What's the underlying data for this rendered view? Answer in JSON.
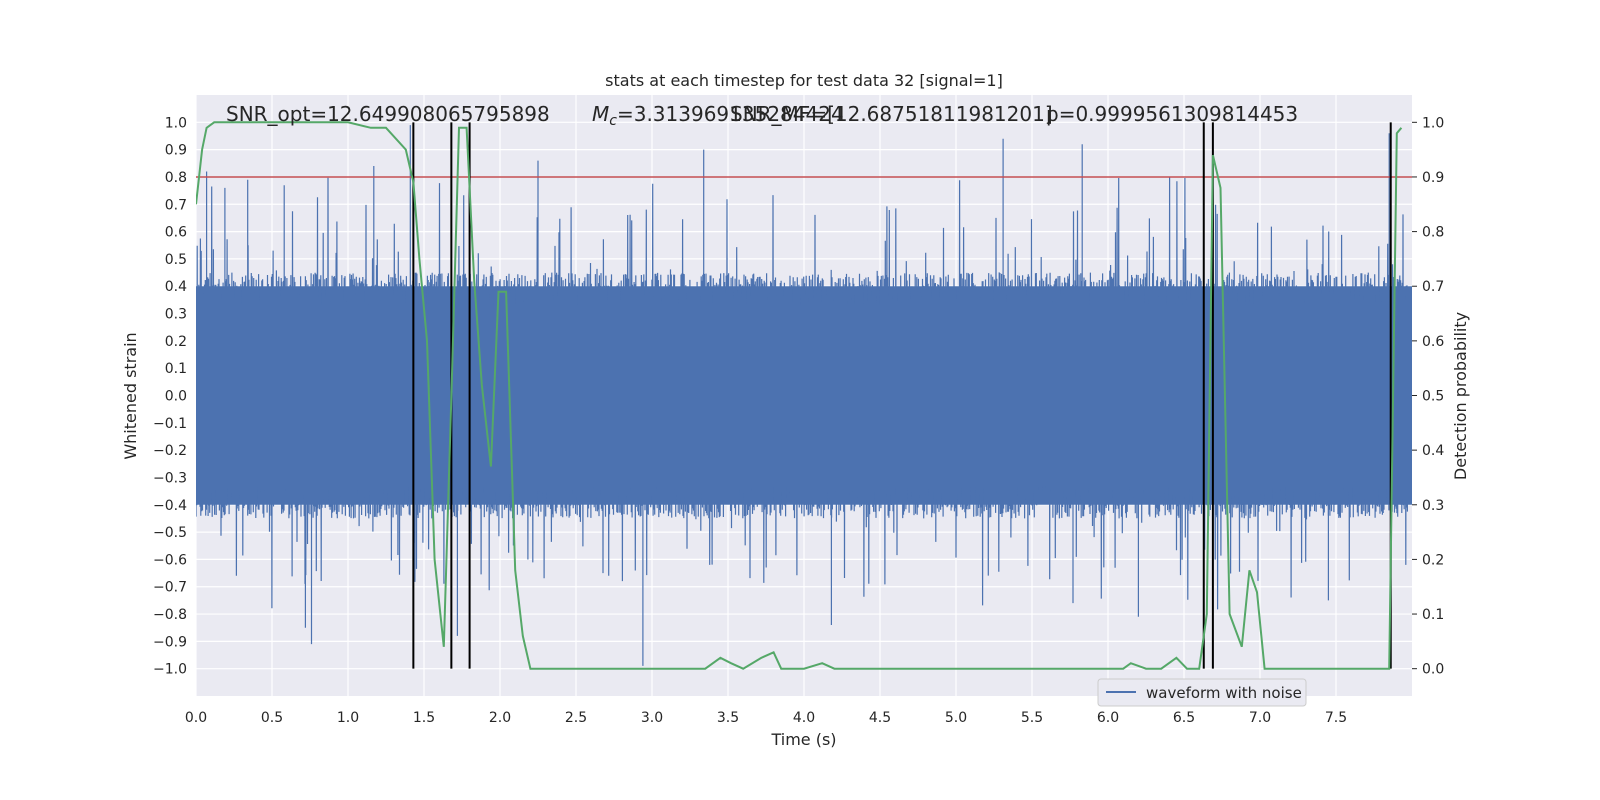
{
  "chart_data": {
    "type": "line",
    "title": "stats at each timestep for test data 32 [signal=1]",
    "xlabel": "Time (s)",
    "ylabel": "Whitened strain",
    "ylabel_right": "Detection probability",
    "xlim": [
      0.0,
      8.0
    ],
    "ylim": [
      -1.1,
      1.1
    ],
    "ylim_right": [
      -0.05,
      1.05
    ],
    "x_ticks": [
      "0.0",
      "0.5",
      "1.0",
      "1.5",
      "2.0",
      "2.5",
      "3.0",
      "3.5",
      "4.0",
      "4.5",
      "5.0",
      "5.5",
      "6.0",
      "6.5",
      "7.0",
      "7.5"
    ],
    "y_ticks": [
      "1.0",
      "0.9",
      "0.8",
      "0.7",
      "0.6",
      "0.5",
      "0.4",
      "0.3",
      "0.2",
      "0.1",
      "0.0",
      "−0.1",
      "−0.2",
      "−0.3",
      "−0.4",
      "−0.5",
      "−0.6",
      "−0.7",
      "−0.8",
      "−0.9",
      "−1.0"
    ],
    "y_right_ticks": [
      "1.0",
      "0.9",
      "0.8",
      "0.7",
      "0.6",
      "0.5",
      "0.4",
      "0.3",
      "0.2",
      "0.1",
      "0.0"
    ],
    "annotations": {
      "snr_opt": "SNR_opt=12.649908065795898",
      "mc": "=3.313969135284424",
      "mc_symbol": "M",
      "mc_sub": "c",
      "snr_mf": "SNR_MF=[12.68751811981201]",
      "p": "p=0.9999561309814453"
    },
    "threshold": 0.9,
    "threshold_color": "#c44e52",
    "grid": true,
    "legend": {
      "position": "bottom-right",
      "entries": [
        "waveform with noise"
      ]
    },
    "colors": {
      "waveform": "#4c72b0",
      "probability": "#55a868",
      "markers": "#000000",
      "background": "#eaeaf2"
    },
    "vertical_markers_x": [
      1.43,
      1.68,
      1.8,
      6.63,
      6.69,
      7.86
    ],
    "waveform_envelope": {
      "core_amplitude": 0.4,
      "spike_max": 0.99,
      "spike_min": -0.99
    },
    "series": [
      {
        "name": "waveform with noise",
        "axis": "left",
        "style": "dense oscillation",
        "peaks_upper": [
          [
            0.07,
            0.82
          ],
          [
            0.19,
            0.76
          ],
          [
            0.34,
            0.79
          ],
          [
            0.58,
            0.77
          ],
          [
            1.17,
            0.84
          ],
          [
            1.41,
            0.99
          ],
          [
            2.25,
            0.86
          ],
          [
            3.34,
            0.9
          ],
          [
            5.31,
            0.94
          ],
          [
            5.83,
            0.92
          ],
          [
            7.85,
            0.96
          ]
        ],
        "peaks_lower": [
          [
            0.76,
            -0.91
          ],
          [
            0.72,
            -0.85
          ],
          [
            1.72,
            -0.88
          ],
          [
            2.94,
            -0.99
          ],
          [
            4.18,
            -0.84
          ],
          [
            5.77,
            -0.76
          ],
          [
            6.2,
            -0.81
          ],
          [
            7.45,
            -0.75
          ],
          [
            7.86,
            -0.86
          ]
        ]
      },
      {
        "name": "detection probability",
        "axis": "right",
        "x": [
          0.0,
          0.04,
          0.07,
          0.12,
          0.5,
          1.0,
          1.15,
          1.25,
          1.38,
          1.43,
          1.47,
          1.52,
          1.57,
          1.63,
          1.68,
          1.73,
          1.78,
          1.83,
          1.88,
          1.94,
          1.99,
          2.04,
          2.1,
          2.15,
          2.2,
          2.3,
          2.5,
          2.94,
          3.2,
          3.35,
          3.45,
          3.52,
          3.6,
          3.72,
          3.8,
          3.85,
          3.92,
          4.0,
          4.12,
          4.2,
          4.5,
          5.0,
          5.5,
          5.9,
          6.1,
          6.15,
          6.25,
          6.35,
          6.45,
          6.52,
          6.6,
          6.65,
          6.69,
          6.74,
          6.8,
          6.88,
          6.93,
          6.98,
          7.03,
          7.08,
          7.2,
          7.5,
          7.7,
          7.8,
          7.85,
          7.9,
          7.93
        ],
        "y": [
          0.85,
          0.95,
          0.99,
          1.0,
          1.0,
          1.0,
          0.99,
          0.99,
          0.95,
          0.89,
          0.75,
          0.6,
          0.2,
          0.04,
          0.5,
          0.99,
          0.99,
          0.71,
          0.52,
          0.37,
          0.69,
          0.69,
          0.18,
          0.06,
          0.0,
          0.0,
          0.0,
          0.0,
          0.0,
          0.0,
          0.02,
          0.01,
          0.0,
          0.02,
          0.03,
          0.0,
          0.0,
          0.0,
          0.01,
          0.0,
          0.0,
          0.0,
          0.0,
          0.0,
          0.0,
          0.01,
          0.0,
          0.0,
          0.02,
          0.0,
          0.0,
          0.1,
          0.94,
          0.88,
          0.1,
          0.04,
          0.18,
          0.14,
          0.0,
          0.0,
          0.0,
          0.0,
          0.0,
          0.0,
          0.0,
          0.98,
          0.99
        ]
      }
    ]
  }
}
